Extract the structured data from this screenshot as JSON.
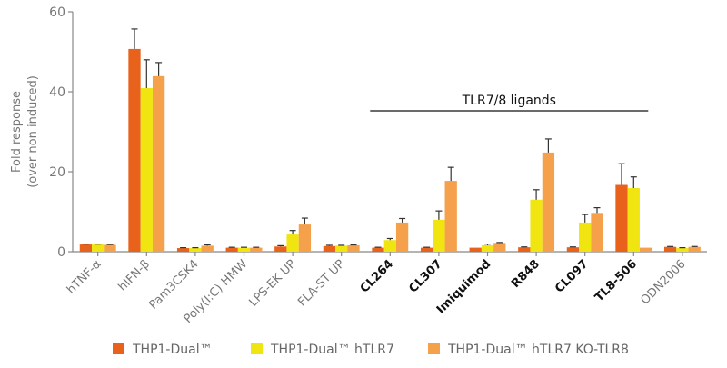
{
  "chart_data": {
    "type": "bar",
    "title": "",
    "xlabel": "",
    "ylabel": [
      "Fold response",
      "(over non induced)"
    ],
    "ylim": [
      0,
      60
    ],
    "yticks": [
      0,
      20,
      40,
      60
    ],
    "grid": false,
    "legend_position": "bottom",
    "categories": [
      "hTNF-α",
      "hIFN-β",
      "Pam3CSK4",
      "Poly(I:C) HMW",
      "LPS-EK UP",
      "FLA-ST UP",
      "CL264",
      "CL307",
      "Imiquimod",
      "R848",
      "CL097",
      "TL8-506",
      "ODN2006"
    ],
    "bold_categories": [
      "CL264",
      "CL307",
      "Imiquimod",
      "R848",
      "CL097",
      "TL8-506"
    ],
    "annotation": {
      "text": "TLR7/8 ligands",
      "from": "CL264",
      "to": "TL8-506"
    },
    "series": [
      {
        "name": "THP1-Dual™",
        "color": "#e8621c",
        "values": [
          1.8,
          50.7,
          0.9,
          1.0,
          1.3,
          1.4,
          1.0,
          1.0,
          1.0,
          1.1,
          1.1,
          16.7,
          1.2
        ],
        "error_top": [
          1.9,
          55.7,
          1.0,
          1.1,
          1.5,
          1.6,
          1.1,
          1.1,
          1.0,
          1.2,
          1.2,
          22.0,
          1.3
        ]
      },
      {
        "name": "THP1-Dual™ hTLR7",
        "color": "#f0e511",
        "values": [
          1.8,
          40.9,
          0.9,
          1.0,
          4.3,
          1.5,
          2.9,
          8.0,
          1.6,
          13.0,
          7.3,
          15.9,
          0.9
        ],
        "error_top": [
          1.9,
          48.0,
          1.0,
          1.1,
          5.3,
          1.6,
          3.3,
          10.2,
          1.9,
          15.5,
          9.3,
          18.7,
          1.0
        ]
      },
      {
        "name": "THP1-Dual™ hTLR7 KO-TLR8",
        "color": "#f5a04a",
        "values": [
          1.7,
          43.9,
          1.5,
          1.0,
          6.8,
          1.6,
          7.3,
          17.7,
          2.2,
          24.8,
          9.7,
          1.0,
          1.2
        ],
        "error_top": [
          1.8,
          47.3,
          1.7,
          1.1,
          8.4,
          1.7,
          8.3,
          21.1,
          2.3,
          28.2,
          11.0,
          1.0,
          1.3
        ]
      }
    ]
  }
}
